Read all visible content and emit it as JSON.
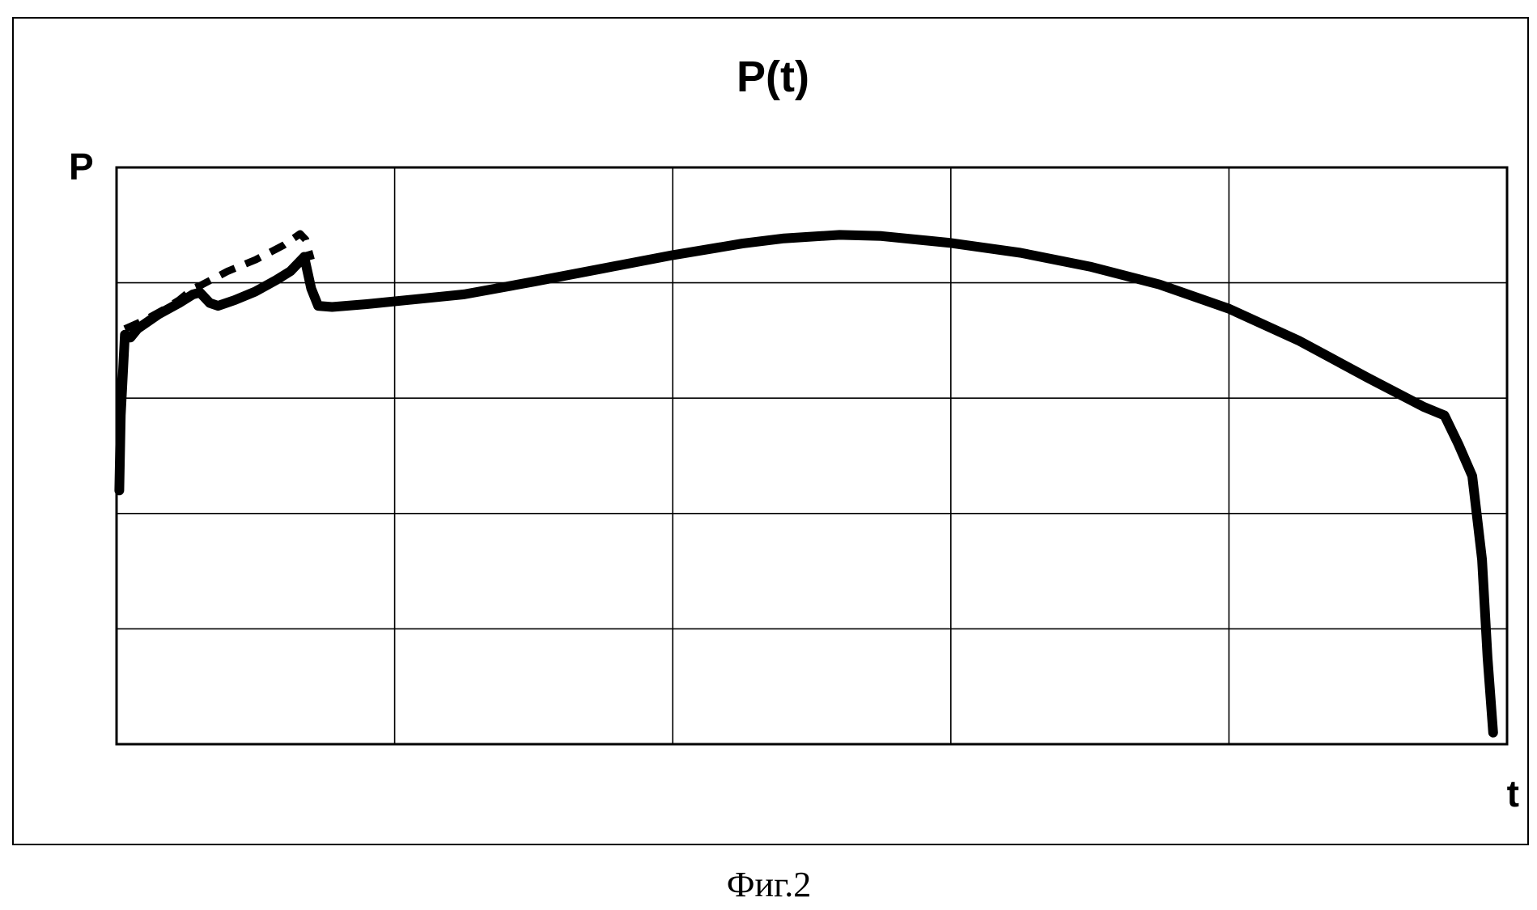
{
  "chart_data": {
    "type": "line",
    "title": "P(t)",
    "xlabel": "t",
    "ylabel": "P",
    "xlim": [
      0,
      100
    ],
    "ylim": [
      0,
      100
    ],
    "grid": true,
    "legend": "none",
    "x_gridlines": [
      20,
      40,
      60,
      80
    ],
    "y_gridlines": [
      20,
      40,
      60,
      80
    ],
    "series": [
      {
        "style": "solid",
        "color": "#000000",
        "points": [
          [
            0.2,
            44
          ],
          [
            0.3,
            57
          ],
          [
            0.6,
            71
          ],
          [
            1.0,
            70.5
          ],
          [
            1.5,
            72
          ],
          [
            3,
            74.5
          ],
          [
            4.5,
            76.5
          ],
          [
            5.5,
            78
          ],
          [
            6,
            78.3
          ],
          [
            6.7,
            76.5
          ],
          [
            7.3,
            76
          ],
          [
            8.5,
            77
          ],
          [
            10,
            78.5
          ],
          [
            11.5,
            80.5
          ],
          [
            12.5,
            82
          ],
          [
            13.5,
            84.5
          ],
          [
            14,
            79
          ],
          [
            14.5,
            76
          ],
          [
            15.5,
            75.8
          ],
          [
            18,
            76.3
          ],
          [
            25,
            78
          ],
          [
            30,
            80.2
          ],
          [
            35,
            82.5
          ],
          [
            40,
            84.8
          ],
          [
            45,
            86.8
          ],
          [
            48,
            87.7
          ],
          [
            52,
            88.3
          ],
          [
            55,
            88.1
          ],
          [
            60,
            86.9
          ],
          [
            65,
            85.2
          ],
          [
            70,
            82.8
          ],
          [
            75,
            79.7
          ],
          [
            80,
            75.5
          ],
          [
            85,
            70
          ],
          [
            90,
            63.5
          ],
          [
            94,
            58.5
          ],
          [
            95.5,
            57
          ],
          [
            96.5,
            52
          ],
          [
            97.5,
            46.5
          ],
          [
            98.2,
            32
          ],
          [
            98.6,
            15
          ],
          [
            99.0,
            2
          ]
        ]
      },
      {
        "style": "dashed",
        "color": "#000000",
        "points": [
          [
            0.6,
            72
          ],
          [
            2,
            73.5
          ],
          [
            3.5,
            75.5
          ],
          [
            4.5,
            77
          ],
          [
            5.5,
            79
          ],
          [
            6,
            79.5
          ],
          [
            8,
            82
          ],
          [
            10,
            84
          ],
          [
            12,
            86.5
          ],
          [
            13.2,
            88.5
          ],
          [
            13.6,
            87.5
          ],
          [
            14,
            84
          ]
        ]
      }
    ]
  },
  "caption": "Фиг.2"
}
